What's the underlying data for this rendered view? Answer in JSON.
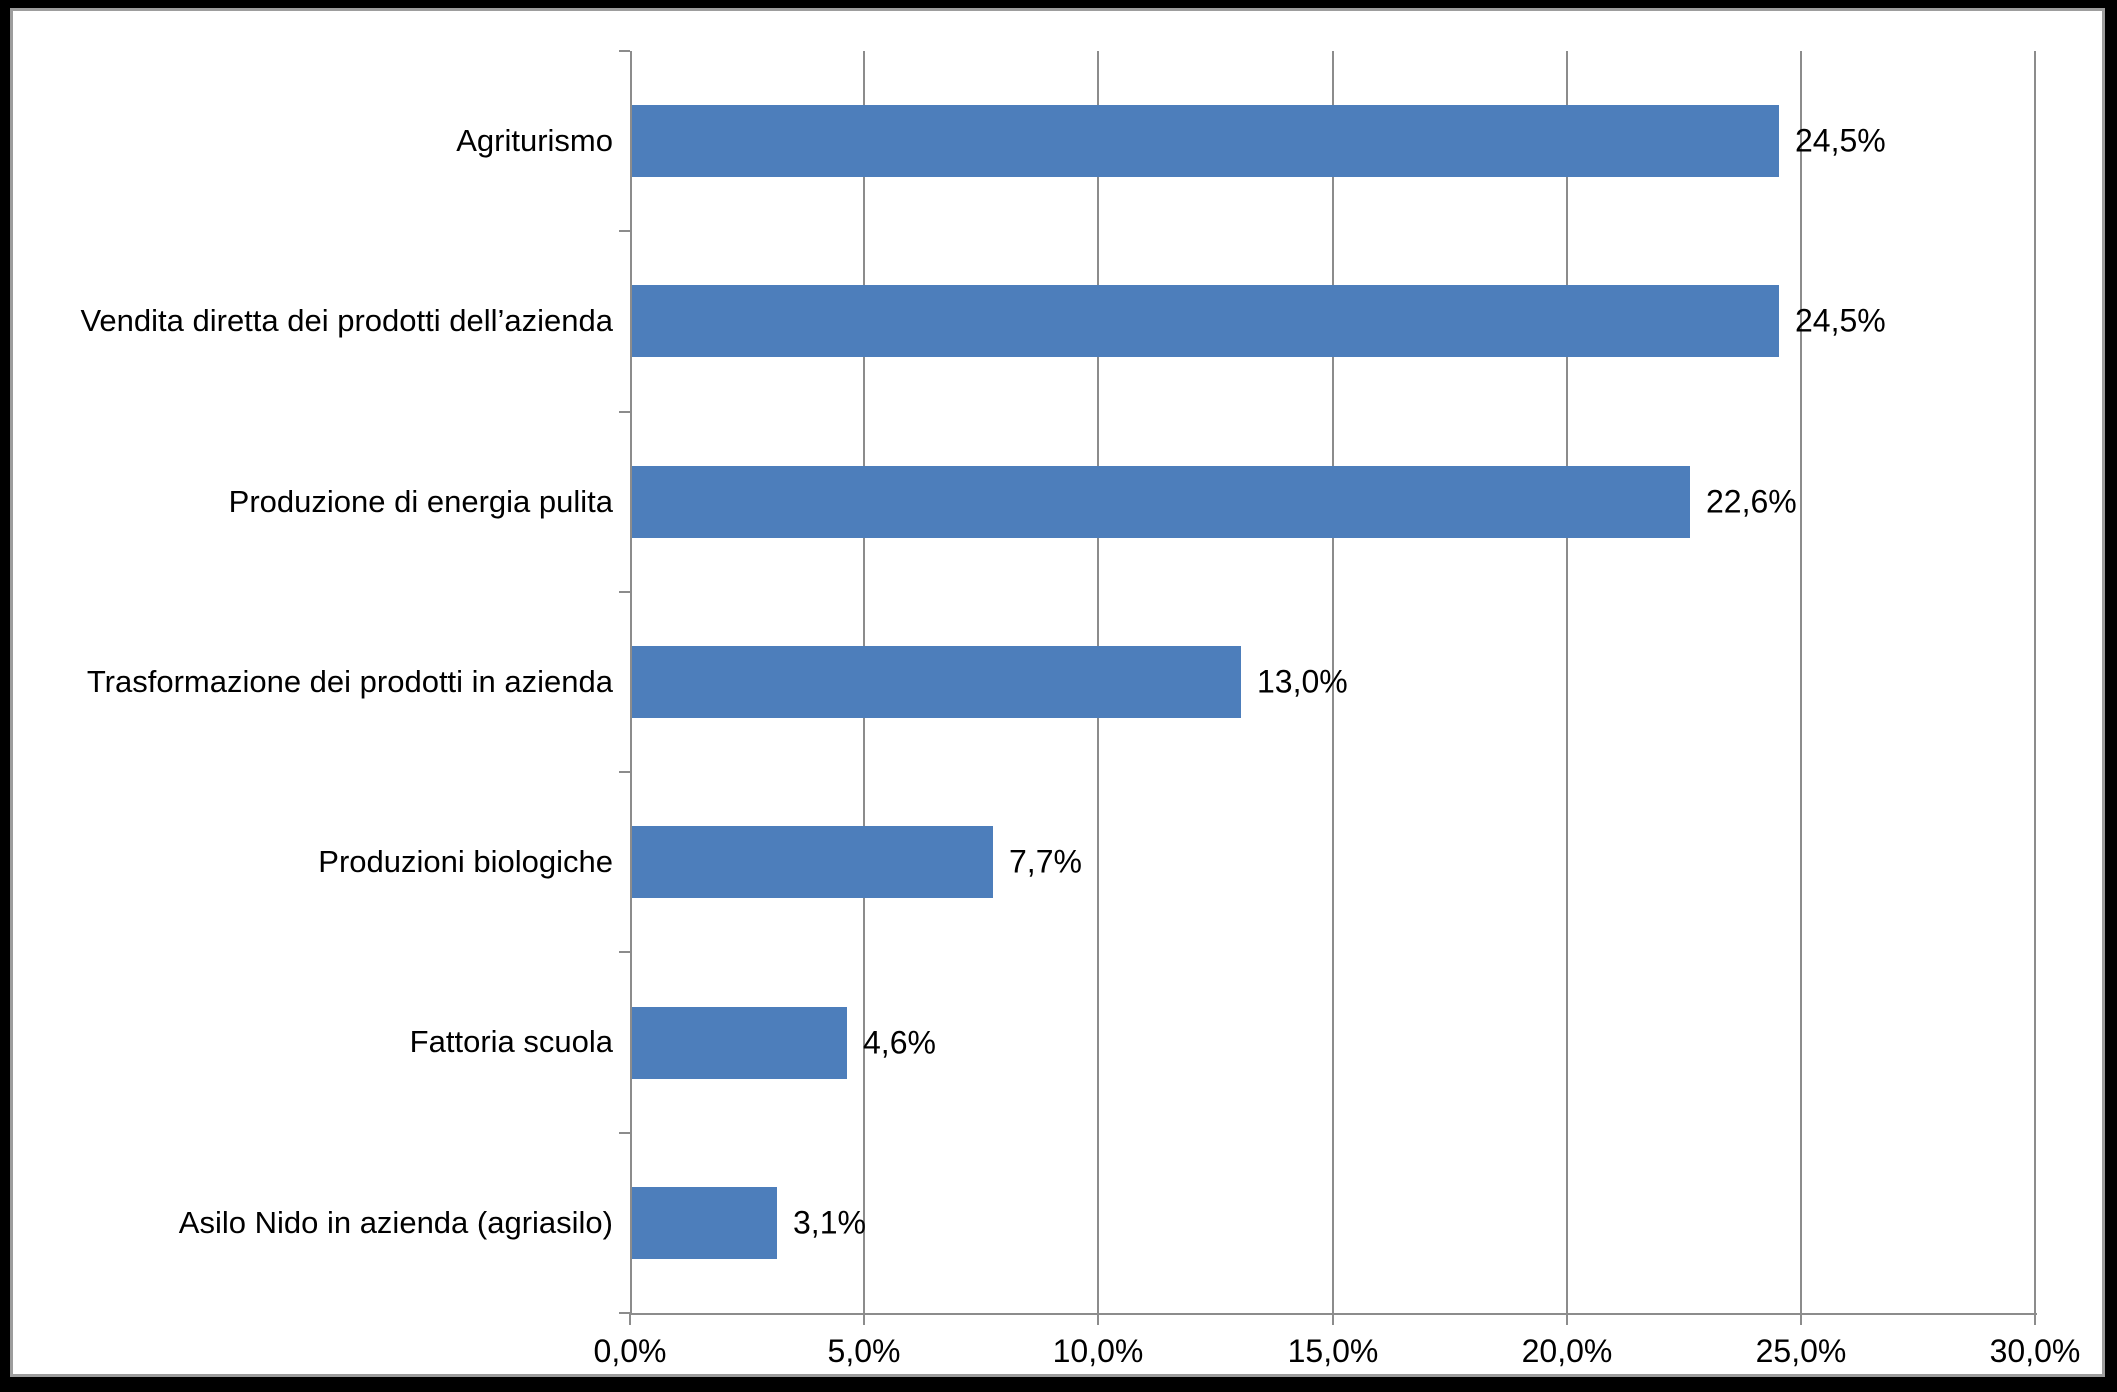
{
  "chart_data": {
    "type": "bar",
    "orientation": "horizontal",
    "title": "",
    "xlabel": "",
    "ylabel": "",
    "categories": [
      "Agriturismo",
      "Vendita diretta dei prodotti dell’azienda",
      "Produzione di energia pulita",
      "Trasformazione dei prodotti in azienda",
      "Produzioni biologiche",
      "Fattoria scuola",
      "Asilo Nido in azienda (agriasilo)"
    ],
    "values": [
      24.5,
      24.5,
      22.6,
      13.0,
      7.7,
      4.6,
      3.1
    ],
    "value_labels": [
      "24,5%",
      "24,5%",
      "22,6%",
      "13,0%",
      "7,7%",
      "4,6%",
      "3,1%"
    ],
    "xlim": [
      0,
      30
    ],
    "x_ticks": [
      0,
      5,
      10,
      15,
      20,
      25,
      30
    ],
    "x_tick_labels": [
      "0,0%",
      "5,0%",
      "10,0%",
      "15,0%",
      "20,0%",
      "25,0%",
      "30,0%"
    ],
    "grid": "vertical-major",
    "legend": "none",
    "colors": {
      "bar": "#4d7ebb",
      "grid": "#8c8c8c",
      "axis": "#8c8c8c",
      "tick": "#8c8c8c",
      "text": "#000000",
      "panel_background": "#ffffff",
      "page_background": "#000000",
      "panel_border": "#9d9d9d"
    }
  }
}
